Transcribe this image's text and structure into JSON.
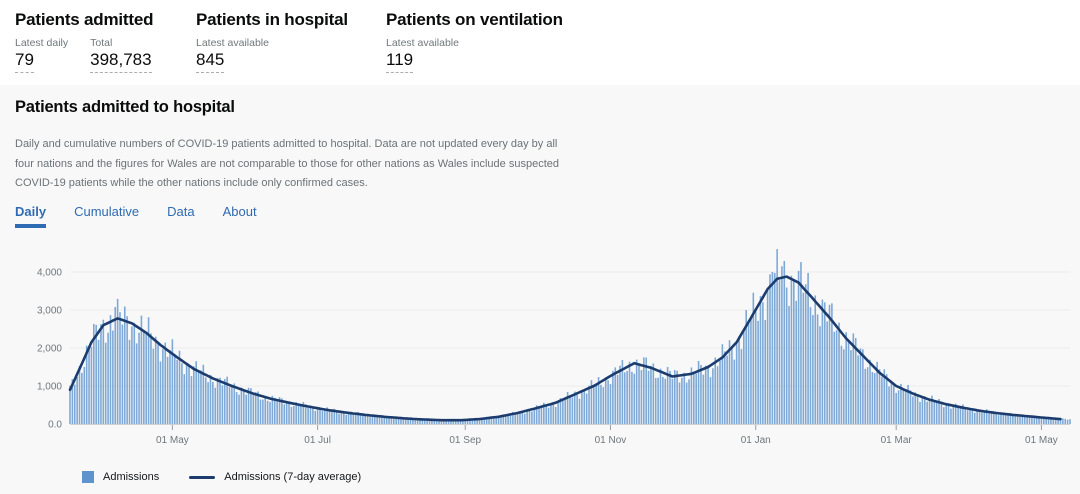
{
  "header": {
    "cards": [
      {
        "title": "Patients admitted",
        "stats": [
          {
            "label": "Latest daily",
            "value": "79"
          },
          {
            "label": "Total",
            "value": "398,783"
          }
        ]
      },
      {
        "title": "Patients in hospital",
        "stats": [
          {
            "label": "Latest available",
            "value": "845"
          }
        ]
      },
      {
        "title": "Patients on ventilation",
        "stats": [
          {
            "label": "Latest available",
            "value": "119"
          }
        ]
      }
    ]
  },
  "panel": {
    "heading": "Patients admitted to hospital",
    "description": "Daily and cumulative numbers of COVID-19 patients admitted to hospital. Data are not updated every day by all four nations and the figures for Wales are not comparable to those for other nations as Wales include suspected COVID-19 patients while the other nations include only confirmed cases.",
    "tabs": [
      {
        "label": "Daily",
        "active": true
      },
      {
        "label": "Cumulative",
        "active": false
      },
      {
        "label": "Data",
        "active": false
      },
      {
        "label": "About",
        "active": false
      }
    ]
  },
  "chart_data": {
    "type": "bar+line",
    "start_date": "2020-03-19",
    "end_date": "2021-05-13",
    "legend": [
      "Admissions",
      "Admissions (7-day average)"
    ],
    "y_axis": {
      "ticks": [
        {
          "label": "0.0",
          "value": 0
        },
        {
          "label": "1,000",
          "value": 1000
        },
        {
          "label": "2,000",
          "value": 2000
        },
        {
          "label": "3,000",
          "value": 3000
        },
        {
          "label": "4,000",
          "value": 4000
        }
      ],
      "ylim": [
        0,
        4400
      ]
    },
    "x_axis": {
      "ticks": [
        {
          "label": "01 May",
          "date": "2020-05-01"
        },
        {
          "label": "01 Jul",
          "date": "2020-07-01"
        },
        {
          "label": "01 Sep",
          "date": "2020-09-01"
        },
        {
          "label": "01 Nov",
          "date": "2020-11-01"
        },
        {
          "label": "01 Jan",
          "date": "2021-01-01"
        },
        {
          "label": "01 Mar",
          "date": "2021-03-01"
        },
        {
          "label": "01 May",
          "date": "2021-05-01"
        }
      ]
    },
    "series": [
      {
        "name": "Admissions",
        "type": "bar",
        "color": "#5d94cd",
        "opacity": 0.78
      },
      {
        "name": "Admissions (7-day average)",
        "type": "line",
        "color": "#1c3c6e",
        "keypoints": [
          [
            "2020-03-19",
            900
          ],
          [
            "2020-03-23",
            1450
          ],
          [
            "2020-03-28",
            2150
          ],
          [
            "2020-04-02",
            2600
          ],
          [
            "2020-04-08",
            2780
          ],
          [
            "2020-04-14",
            2650
          ],
          [
            "2020-04-20",
            2400
          ],
          [
            "2020-04-26",
            2080
          ],
          [
            "2020-05-02",
            1800
          ],
          [
            "2020-05-10",
            1450
          ],
          [
            "2020-05-18",
            1200
          ],
          [
            "2020-05-26",
            1000
          ],
          [
            "2020-06-03",
            820
          ],
          [
            "2020-06-11",
            670
          ],
          [
            "2020-06-19",
            560
          ],
          [
            "2020-06-27",
            460
          ],
          [
            "2020-07-05",
            370
          ],
          [
            "2020-07-13",
            300
          ],
          [
            "2020-07-21",
            240
          ],
          [
            "2020-07-29",
            190
          ],
          [
            "2020-08-06",
            150
          ],
          [
            "2020-08-14",
            120
          ],
          [
            "2020-08-22",
            100
          ],
          [
            "2020-08-30",
            100
          ],
          [
            "2020-09-07",
            130
          ],
          [
            "2020-09-15",
            190
          ],
          [
            "2020-09-23",
            290
          ],
          [
            "2020-10-01",
            420
          ],
          [
            "2020-10-09",
            560
          ],
          [
            "2020-10-17",
            780
          ],
          [
            "2020-10-25",
            1000
          ],
          [
            "2020-11-02",
            1300
          ],
          [
            "2020-11-11",
            1600
          ],
          [
            "2020-11-18",
            1480
          ],
          [
            "2020-11-27",
            1250
          ],
          [
            "2020-12-05",
            1320
          ],
          [
            "2020-12-12",
            1500
          ],
          [
            "2020-12-18",
            1750
          ],
          [
            "2020-12-24",
            2150
          ],
          [
            "2020-12-31",
            2900
          ],
          [
            "2021-01-06",
            3550
          ],
          [
            "2021-01-10",
            3820
          ],
          [
            "2021-01-14",
            3880
          ],
          [
            "2021-01-19",
            3720
          ],
          [
            "2021-01-25",
            3300
          ],
          [
            "2021-02-01",
            2800
          ],
          [
            "2021-02-08",
            2250
          ],
          [
            "2021-02-15",
            1800
          ],
          [
            "2021-02-22",
            1350
          ],
          [
            "2021-03-01",
            1000
          ],
          [
            "2021-03-08",
            800
          ],
          [
            "2021-03-15",
            640
          ],
          [
            "2021-03-22",
            520
          ],
          [
            "2021-03-29",
            430
          ],
          [
            "2021-04-05",
            350
          ],
          [
            "2021-04-12",
            290
          ],
          [
            "2021-04-19",
            240
          ],
          [
            "2021-04-26",
            200
          ],
          [
            "2021-05-03",
            160
          ],
          [
            "2021-05-09",
            130
          ],
          [
            "2021-05-13",
            115
          ]
        ]
      }
    ],
    "daily_spikes": [
      [
        "2020-04-07",
        3080
      ],
      [
        "2021-01-08",
        4000
      ],
      [
        "2021-01-12",
        4150
      ]
    ],
    "grid": {
      "color": "#ececec",
      "zero_line": "#cfd2d4",
      "tick_color": "#9a9ea1",
      "label_color": "#6f777b"
    }
  }
}
